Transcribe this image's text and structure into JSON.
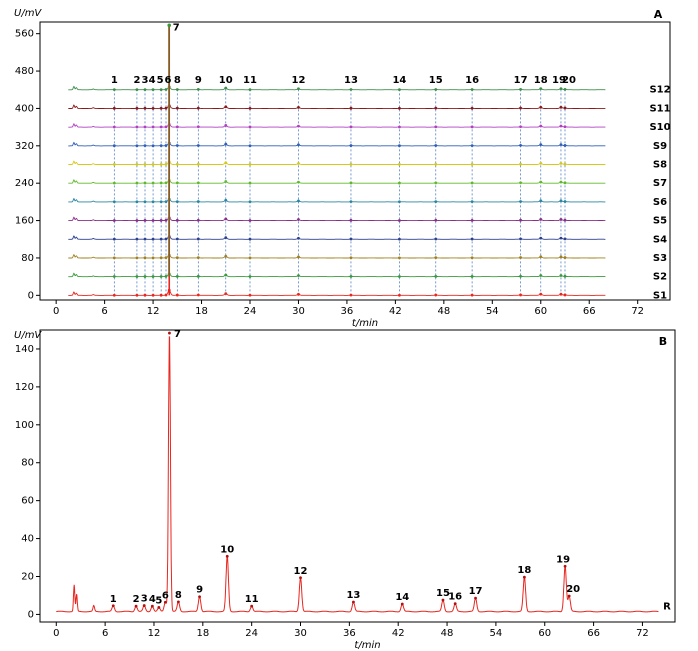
{
  "chart_data": [
    {
      "panel": "A",
      "type": "line",
      "ylabel": "U/mV",
      "xlabel": "t/min",
      "xlim": [
        -2,
        76
      ],
      "ylim": [
        -10,
        585
      ],
      "xticks": [
        0,
        6,
        12,
        18,
        24,
        30,
        36,
        42,
        48,
        54,
        60,
        66,
        72
      ],
      "yticks": [
        0,
        80,
        160,
        240,
        320,
        400,
        480,
        560
      ],
      "grid": false,
      "stacked_offset_mV": 40,
      "peak_labels": [
        "1",
        "2",
        "3",
        "4",
        "5",
        "6",
        "7",
        "8",
        "9",
        "10",
        "11",
        "12",
        "13",
        "14",
        "15",
        "16",
        "17",
        "18",
        "19",
        "20"
      ],
      "peak_times": [
        7.2,
        10.0,
        11.0,
        12.0,
        13.0,
        13.6,
        14.0,
        15.0,
        17.6,
        21.0,
        24.0,
        30.0,
        36.5,
        42.5,
        47.0,
        51.5,
        57.5,
        60.0,
        62.5,
        63.0
      ],
      "peak_heights": [
        2,
        2,
        2,
        2,
        2,
        4,
        145,
        4,
        6,
        28,
        2,
        18,
        4,
        2,
        4,
        3,
        6,
        20,
        20,
        6
      ],
      "series": [
        {
          "name": "S1",
          "color": "#e8261f"
        },
        {
          "name": "S2",
          "color": "#3a9a3a"
        },
        {
          "name": "S3",
          "color": "#a08020"
        },
        {
          "name": "S4",
          "color": "#2b3f8f"
        },
        {
          "name": "S5",
          "color": "#8c2f8c"
        },
        {
          "name": "S6",
          "color": "#2a86a0"
        },
        {
          "name": "S7",
          "color": "#5fba2a"
        },
        {
          "name": "S8",
          "color": "#d6c91a"
        },
        {
          "name": "S9",
          "color": "#2f5fb8"
        },
        {
          "name": "S10",
          "color": "#b040c0"
        },
        {
          "name": "S11",
          "color": "#8a1a1a"
        },
        {
          "name": "S12",
          "color": "#3e8f4a"
        }
      ]
    },
    {
      "panel": "B",
      "type": "line",
      "ylabel": "U/mV",
      "xlabel": "t/min",
      "xlim": [
        -2,
        76
      ],
      "ylim": [
        -4,
        150
      ],
      "xticks": [
        0,
        6,
        12,
        18,
        24,
        30,
        36,
        42,
        48,
        54,
        60,
        66,
        72
      ],
      "yticks": [
        0,
        20,
        40,
        60,
        80,
        100,
        120,
        140
      ],
      "grid": false,
      "series": [
        {
          "name": "R",
          "color": "#e8261f"
        }
      ],
      "peaks": [
        {
          "label": "1",
          "t": 7.0,
          "h": 3
        },
        {
          "label": "2",
          "t": 9.8,
          "h": 3
        },
        {
          "label": "3",
          "t": 10.8,
          "h": 3
        },
        {
          "label": "4",
          "t": 11.8,
          "h": 3
        },
        {
          "label": "5",
          "t": 12.6,
          "h": 2
        },
        {
          "label": "6",
          "t": 13.4,
          "h": 5
        },
        {
          "label": "7",
          "t": 13.9,
          "h": 147
        },
        {
          "label": "8",
          "t": 15.0,
          "h": 5
        },
        {
          "label": "9",
          "t": 17.6,
          "h": 8
        },
        {
          "label": "10",
          "t": 21.0,
          "h": 29
        },
        {
          "label": "11",
          "t": 24.0,
          "h": 3
        },
        {
          "label": "12",
          "t": 30.0,
          "h": 18
        },
        {
          "label": "13",
          "t": 36.5,
          "h": 5
        },
        {
          "label": "14",
          "t": 42.5,
          "h": 4
        },
        {
          "label": "15",
          "t": 47.5,
          "h": 6
        },
        {
          "label": "16",
          "t": 49.0,
          "h": 4
        },
        {
          "label": "17",
          "t": 51.5,
          "h": 7
        },
        {
          "label": "18",
          "t": 57.5,
          "h": 18
        },
        {
          "label": "19",
          "t": 62.5,
          "h": 24
        },
        {
          "label": "20",
          "t": 63.0,
          "h": 8
        }
      ]
    }
  ]
}
